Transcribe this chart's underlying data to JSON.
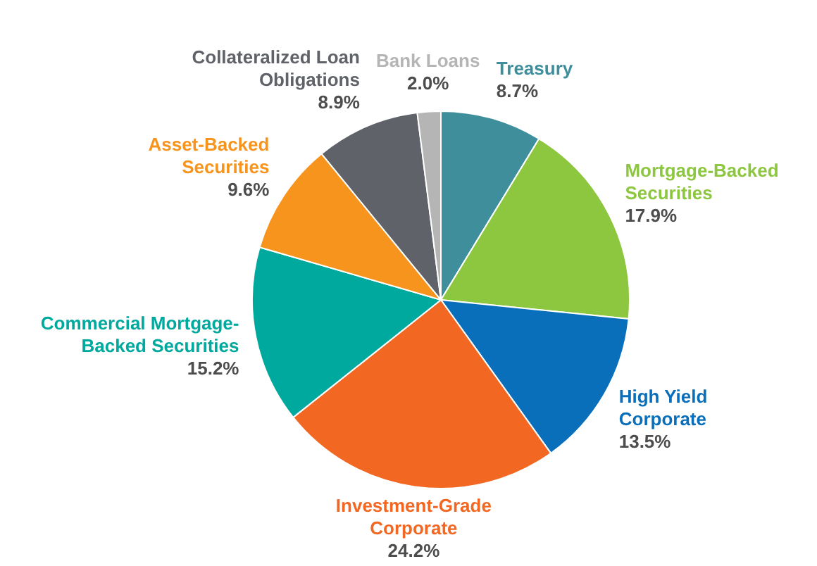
{
  "chart_data": {
    "type": "pie",
    "categories": [
      "Treasury",
      "Mortgage-Backed Securities",
      "High Yield Corporate",
      "Investment-Grade Corporate",
      "Commercial Mortgage-Backed Securities",
      "Asset-Backed Securities",
      "Collateralized Loan Obligations",
      "Bank Loans"
    ],
    "values": [
      8.7,
      17.9,
      13.5,
      24.2,
      15.2,
      9.6,
      8.9,
      2.0
    ],
    "colors": [
      "#3e8e9b",
      "#8dc63f",
      "#0a6fba",
      "#f26722",
      "#00a99d",
      "#f7941d",
      "#5f6268",
      "#b5b5b5"
    ],
    "value_labels": [
      "8.7%",
      "17.9%",
      "13.5%",
      "24.2%",
      "15.2%",
      "9.6%",
      "8.9%",
      "2.0%"
    ],
    "legend": false
  }
}
